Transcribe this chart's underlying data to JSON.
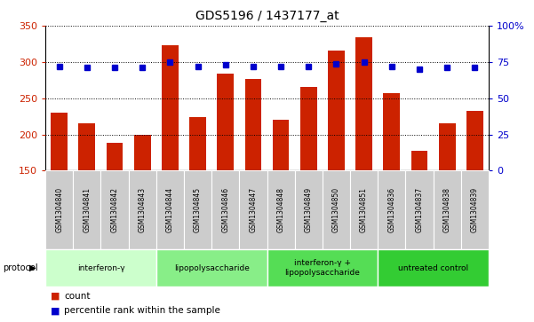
{
  "title": "GDS5196 / 1437177_at",
  "samples": [
    "GSM1304840",
    "GSM1304841",
    "GSM1304842",
    "GSM1304843",
    "GSM1304844",
    "GSM1304845",
    "GSM1304846",
    "GSM1304847",
    "GSM1304848",
    "GSM1304849",
    "GSM1304850",
    "GSM1304851",
    "GSM1304836",
    "GSM1304837",
    "GSM1304838",
    "GSM1304839"
  ],
  "counts": [
    230,
    215,
    188,
    199,
    323,
    224,
    284,
    276,
    220,
    265,
    316,
    334,
    257,
    178,
    215,
    232
  ],
  "percentiles": [
    72,
    71,
    71,
    71,
    75,
    72,
    73,
    72,
    72,
    72,
    74,
    75,
    72,
    70,
    71,
    71
  ],
  "groups": [
    {
      "label": "interferon-γ",
      "start": 0,
      "end": 4,
      "color": "#ccffcc"
    },
    {
      "label": "lipopolysaccharide",
      "start": 4,
      "end": 8,
      "color": "#88ee88"
    },
    {
      "label": "interferon-γ +\nlipopolysaccharide",
      "start": 8,
      "end": 12,
      "color": "#55dd55"
    },
    {
      "label": "untreated control",
      "start": 12,
      "end": 16,
      "color": "#33cc33"
    }
  ],
  "ylim_left": [
    150,
    350
  ],
  "ylim_right": [
    0,
    100
  ],
  "bar_color": "#cc2200",
  "dot_color": "#0000cc",
  "background_color": "#ffffff",
  "sample_bg_color": "#cccccc"
}
